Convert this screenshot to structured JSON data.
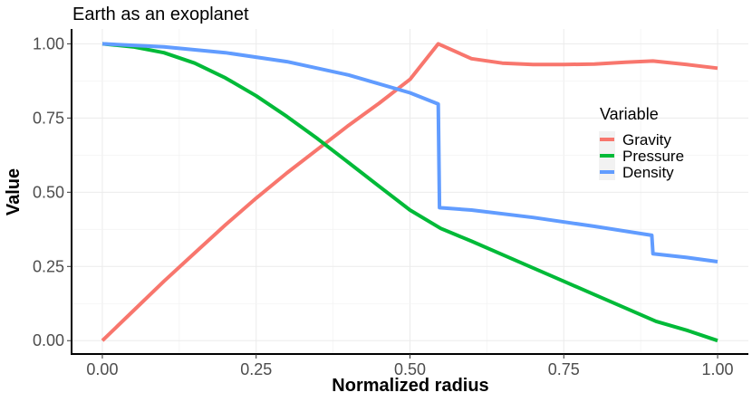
{
  "chart_data": {
    "type": "line",
    "title": "Earth as an exoplanet",
    "xlabel": "Normalized radius",
    "ylabel": "Value",
    "xlim": [
      -0.05,
      1.05
    ],
    "ylim": [
      -0.045,
      1.05
    ],
    "x_ticks": [
      0.0,
      0.25,
      0.5,
      0.75,
      1.0
    ],
    "x_tick_labels": [
      "0.00",
      "0.25",
      "0.50",
      "0.75",
      "1.00"
    ],
    "y_ticks": [
      0.0,
      0.25,
      0.5,
      0.75,
      1.0
    ],
    "y_tick_labels": [
      "0.00",
      "0.25",
      "0.50",
      "0.75",
      "1.00"
    ],
    "grid": true,
    "legend_title": "Variable",
    "legend_position": "right",
    "series": [
      {
        "name": "Gravity",
        "color": "#F8766D",
        "x": [
          0.0,
          0.05,
          0.1,
          0.15,
          0.2,
          0.25,
          0.3,
          0.35,
          0.4,
          0.45,
          0.5,
          0.546,
          0.6,
          0.65,
          0.7,
          0.75,
          0.8,
          0.85,
          0.895,
          0.95,
          1.0
        ],
        "y": [
          0.0,
          0.1,
          0.2,
          0.295,
          0.39,
          0.48,
          0.565,
          0.645,
          0.725,
          0.8,
          0.88,
          1.0,
          0.95,
          0.935,
          0.93,
          0.93,
          0.932,
          0.938,
          0.942,
          0.93,
          0.918
        ]
      },
      {
        "name": "Pressure",
        "color": "#00BA38",
        "x": [
          0.0,
          0.05,
          0.1,
          0.15,
          0.2,
          0.25,
          0.3,
          0.35,
          0.4,
          0.45,
          0.5,
          0.55,
          0.6,
          0.65,
          0.7,
          0.75,
          0.8,
          0.85,
          0.9,
          0.95,
          1.0
        ],
        "y": [
          1.0,
          0.99,
          0.97,
          0.935,
          0.885,
          0.825,
          0.755,
          0.68,
          0.6,
          0.52,
          0.44,
          0.378,
          0.335,
          0.29,
          0.245,
          0.2,
          0.155,
          0.11,
          0.065,
          0.035,
          0.0
        ]
      },
      {
        "name": "Density",
        "color": "#619CFF",
        "x": [
          0.0,
          0.1,
          0.2,
          0.3,
          0.4,
          0.5,
          0.546,
          0.548,
          0.6,
          0.7,
          0.8,
          0.893,
          0.895,
          0.95,
          1.0
        ],
        "y": [
          1.0,
          0.99,
          0.97,
          0.94,
          0.895,
          0.835,
          0.797,
          0.448,
          0.44,
          0.415,
          0.385,
          0.355,
          0.293,
          0.28,
          0.266
        ]
      }
    ]
  }
}
